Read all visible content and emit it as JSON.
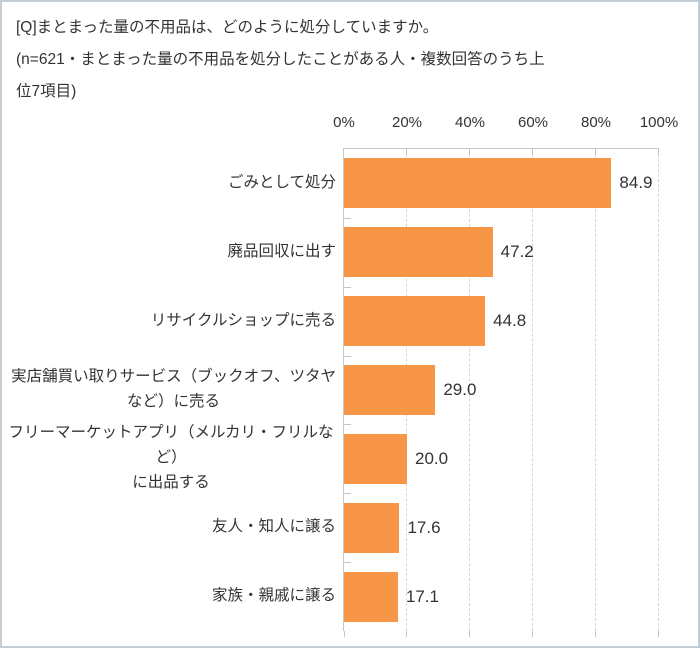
{
  "page": {
    "background": "#FFFFFF",
    "border_color": "#C3CDD6"
  },
  "header": {
    "title": "[Q]まとまった量の不用品は、どのように処分していますか。",
    "subtitle": "(n=621・まとまった量の不用品を処分したことがある人・複数回答のうち上\n位7項目)",
    "sample_size": 621
  },
  "chart_data": {
    "type": "bar",
    "orientation": "horizontal",
    "title": "",
    "xlabel": "",
    "ylabel": "",
    "categories": [
      "ごみとして処分",
      "廃品回収に出す",
      "リサイクルショップに売る",
      "実店舗買い取りサービス（ブックオフ、ツタヤなど）に売る",
      "フリーマーケットアプリ（メルカリ・フリルなど）に出品する",
      "友人・知人に譲る",
      "家族・親戚に譲る"
    ],
    "categories_display": [
      "ごみとして処分",
      "廃品回収に出す",
      "リサイクルショップに売る",
      "実店舗買い取りサービス（ブックオフ、ツタヤ\nなど）に売る",
      "フリーマーケットアプリ（メルカリ・フリルなど）\nに出品する",
      "友人・知人に譲る",
      "家族・親戚に譲る"
    ],
    "values": [
      84.9,
      47.2,
      44.8,
      29.0,
      20.0,
      17.6,
      17.1
    ],
    "value_labels": [
      "84.9",
      "47.2",
      "44.8",
      "29.0",
      "20.0",
      "17.6",
      "17.1"
    ],
    "x_ticks": [
      "0%",
      "20%",
      "40%",
      "60%",
      "80%",
      "100%"
    ],
    "xlim": [
      0,
      100
    ],
    "grid": "vertical-dashed",
    "legend": "none",
    "bar_color": "#F79646",
    "grid_color": "#D6D6D6",
    "axis_color": "#C6C6C6",
    "text_color": "#333333"
  }
}
